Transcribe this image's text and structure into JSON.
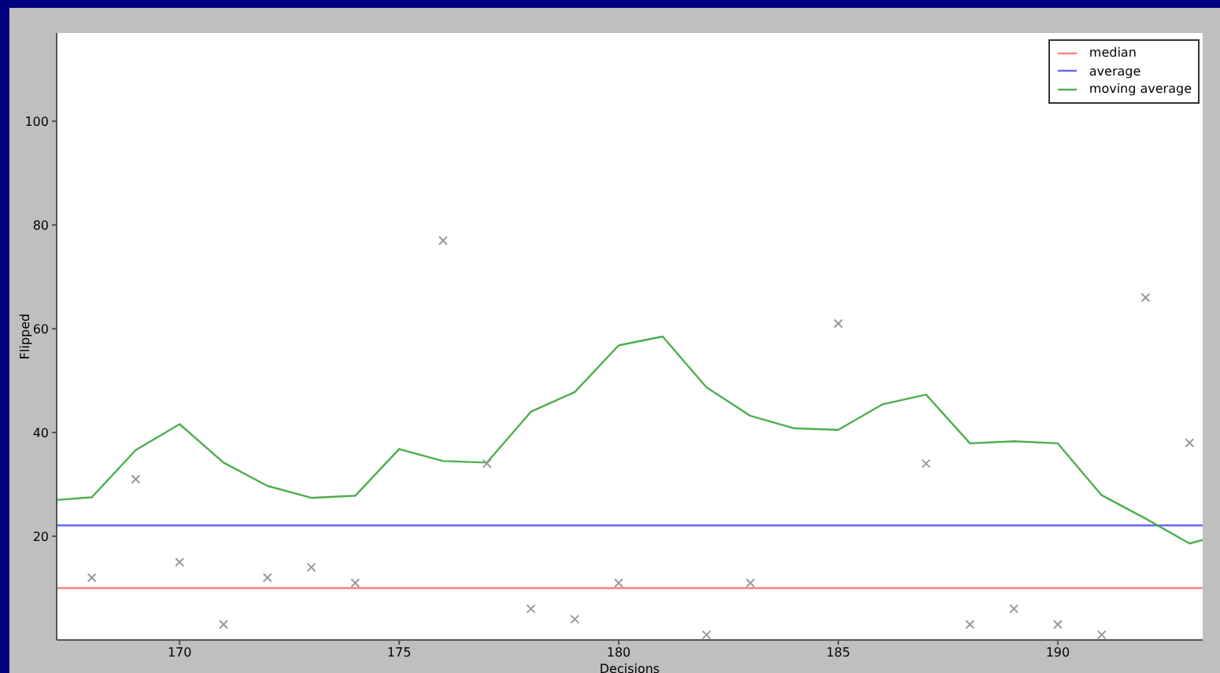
{
  "chart_data": {
    "type": "line",
    "xlabel": "Decisions",
    "ylabel": "Flipped",
    "xlim": [
      167.2,
      193.3
    ],
    "ylim": [
      0,
      117
    ],
    "xticks": [
      170,
      175,
      180,
      185,
      190
    ],
    "yticks": [
      20,
      40,
      60,
      80,
      100
    ],
    "grid": false,
    "legend": "top right",
    "line_style": "solid",
    "series": [
      {
        "name": "median",
        "color": "#ff7f7f",
        "x": [
          167.2,
          193.3
        ],
        "values": [
          10,
          10
        ]
      },
      {
        "name": "average",
        "color": "#6666ff",
        "x": [
          167.2,
          193.3
        ],
        "values": [
          22.1,
          22.1
        ]
      },
      {
        "name": "moving average",
        "color": "#4caf4c",
        "x": [
          167.2,
          168,
          169,
          170,
          171,
          172,
          173,
          174,
          175,
          176,
          177,
          178,
          179,
          180,
          181,
          182,
          183,
          184,
          185,
          186,
          187,
          188,
          189,
          190,
          191,
          192,
          193,
          193.3
        ],
        "values": [
          27,
          27.5,
          36.6,
          41.6,
          34.2,
          29.7,
          27.4,
          27.8,
          36.8,
          34.5,
          34.2,
          44,
          47.8,
          56.8,
          58.5,
          48.7,
          43.2,
          40.8,
          40.5,
          45.4,
          47.3,
          37.9,
          38.3,
          37.9,
          27.9,
          23.4,
          18.6,
          19.3
        ]
      },
      {
        "type": "scatter",
        "marker": "cross",
        "color": "#999999",
        "x": [
          168,
          169,
          170,
          171,
          172,
          173,
          174,
          176,
          177,
          178,
          179,
          180,
          182,
          183,
          185,
          187,
          188,
          189,
          190,
          191,
          192,
          193
        ],
        "values": [
          12,
          31,
          15,
          3,
          12,
          14,
          11,
          77,
          34,
          6,
          4,
          11,
          1,
          11,
          61,
          34,
          3,
          6,
          3,
          1,
          66,
          38
        ]
      }
    ]
  }
}
